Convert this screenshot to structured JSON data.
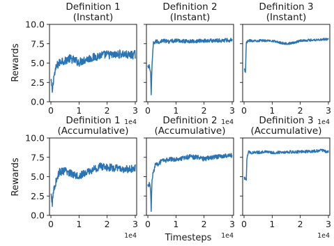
{
  "figure": {
    "ylabel": "Rewards",
    "xlabel": "Timesteps",
    "x_offset_label": "1e4",
    "series_color": "#2a74b4"
  },
  "chart_data": [
    {
      "type": "line",
      "title_line1": "Definition 1",
      "title_line2": "(Instant)",
      "ylim": [
        0.0,
        10.0
      ],
      "xlim": [
        -0.05,
        3.05
      ],
      "x_unit_scale": 10000,
      "yticks": [
        "0.0",
        "2.5",
        "5.0",
        "7.5",
        "10.0"
      ],
      "xticks": [
        "0",
        "1",
        "2",
        "3"
      ],
      "grid": false,
      "x": [
        0.0,
        0.05,
        0.1,
        0.15,
        0.2,
        0.3,
        0.4,
        0.5,
        0.6,
        0.75,
        1.0,
        1.25,
        1.5,
        1.75,
        2.0,
        2.25,
        2.5,
        2.75,
        3.0
      ],
      "y": [
        2.6,
        1.4,
        3.2,
        3.8,
        4.6,
        5.0,
        5.4,
        5.2,
        5.6,
        5.5,
        5.1,
        5.5,
        5.7,
        6.0,
        6.1,
        6.0,
        6.2,
        6.0,
        6.1
      ],
      "noise": 0.55
    },
    {
      "type": "line",
      "title_line1": "Definition 2",
      "title_line2": "(Instant)",
      "ylim": [
        0.0,
        10.0
      ],
      "xlim": [
        -0.05,
        3.05
      ],
      "x_unit_scale": 10000,
      "yticks": [],
      "xticks": [
        "0",
        "1",
        "2",
        "3"
      ],
      "grid": false,
      "x": [
        0.0,
        0.05,
        0.1,
        0.12,
        0.15,
        0.2,
        0.3,
        0.4,
        0.5,
        0.75,
        1.0,
        1.5,
        2.0,
        2.5,
        3.0
      ],
      "y": [
        4.4,
        4.6,
        3.8,
        0.8,
        4.8,
        7.6,
        7.8,
        7.7,
        7.9,
        7.8,
        7.9,
        7.8,
        7.9,
        7.9,
        8.0
      ],
      "noise": 0.25
    },
    {
      "type": "line",
      "title_line1": "Definition 3",
      "title_line2": "(Instant)",
      "ylim": [
        0.0,
        10.0
      ],
      "xlim": [
        -0.05,
        3.05
      ],
      "x_unit_scale": 10000,
      "yticks": [],
      "xticks": [
        "0",
        "1",
        "2",
        "3"
      ],
      "grid": false,
      "x": [
        0.0,
        0.05,
        0.08,
        0.12,
        0.2,
        0.5,
        1.0,
        1.2,
        1.5,
        1.75,
        2.0,
        2.5,
        3.0
      ],
      "y": [
        4.2,
        3.8,
        7.6,
        7.8,
        7.9,
        7.9,
        7.9,
        7.7,
        7.5,
        7.6,
        7.9,
        8.0,
        8.1
      ],
      "noise": 0.15
    },
    {
      "type": "line",
      "title_line1": "Definition 1",
      "title_line2": "(Accumulative)",
      "ylim": [
        0.0,
        10.0
      ],
      "xlim": [
        -0.05,
        3.05
      ],
      "x_unit_scale": 10000,
      "yticks": [
        "0.0",
        "2.5",
        "5.0",
        "7.5",
        "10.0"
      ],
      "xticks": [
        "0",
        "1",
        "2",
        "3"
      ],
      "grid": false,
      "x": [
        0.0,
        0.05,
        0.1,
        0.2,
        0.3,
        0.5,
        0.75,
        1.0,
        1.25,
        1.5,
        1.75,
        2.0,
        2.25,
        2.5,
        2.75,
        3.0
      ],
      "y": [
        2.5,
        1.6,
        3.4,
        4.6,
        5.6,
        5.7,
        5.4,
        5.1,
        5.5,
        5.9,
        6.3,
        6.2,
        6.1,
        6.0,
        5.9,
        6.1
      ],
      "noise": 0.5
    },
    {
      "type": "line",
      "title_line1": "Definition 2",
      "title_line2": "(Accumulative)",
      "ylim": [
        0.0,
        10.0
      ],
      "xlim": [
        -0.05,
        3.05
      ],
      "x_unit_scale": 10000,
      "yticks": [],
      "xticks": [
        "0",
        "1",
        "2",
        "3"
      ],
      "grid": false,
      "x": [
        0.0,
        0.05,
        0.1,
        0.12,
        0.15,
        0.25,
        0.5,
        0.75,
        1.0,
        1.25,
        1.5,
        1.75,
        2.0,
        2.25,
        2.5,
        3.0
      ],
      "y": [
        3.6,
        4.2,
        3.2,
        0.6,
        4.8,
        6.4,
        7.0,
        7.2,
        7.3,
        7.4,
        7.6,
        7.5,
        7.3,
        7.5,
        7.6,
        7.7
      ],
      "noise": 0.3
    },
    {
      "type": "line",
      "title_line1": "Definition 3",
      "title_line2": "(Accumulative)",
      "ylim": [
        0.0,
        10.0
      ],
      "xlim": [
        -0.05,
        3.05
      ],
      "x_unit_scale": 10000,
      "yticks": [],
      "xticks": [
        "0",
        "1",
        "2",
        "3"
      ],
      "grid": false,
      "x": [
        0.0,
        0.08,
        0.1,
        0.15,
        0.3,
        0.75,
        1.0,
        1.5,
        2.0,
        2.5,
        2.75,
        3.0
      ],
      "y": [
        4.8,
        4.7,
        7.4,
        8.2,
        8.1,
        8.2,
        8.1,
        8.2,
        8.2,
        8.3,
        8.4,
        8.2
      ],
      "noise": 0.18
    }
  ]
}
